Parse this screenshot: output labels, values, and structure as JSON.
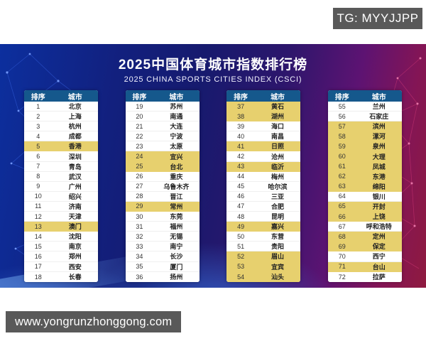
{
  "tg_badge": "TG: MYYJJPP",
  "website": "www.yongrunzhonggong.com",
  "poster": {
    "title": "2025中国体育城市指数排行榜",
    "subtitle": "2025 CHINA SPORTS CITIES INDEX (CSCI)"
  },
  "colors": {
    "header_bg": "#15588c",
    "highlight_row": "#e7d06e",
    "poster_left": "#0c2f9e",
    "poster_right": "#8f1a3f",
    "watermark_bg": "#595959"
  },
  "chart_data": {
    "type": "table",
    "title": "2025中国体育城市指数排行榜",
    "subtitle": "2025 CHINA SPORTS CITIES INDEX (CSCI)",
    "column_headers": [
      "排序",
      "城市"
    ],
    "row_format": [
      "rank",
      "city",
      "highlighted"
    ],
    "legend_note": "highlighted=1 rows shown with yellow background",
    "columns": [
      {
        "rows": [
          [
            1,
            "北京",
            0
          ],
          [
            2,
            "上海",
            0
          ],
          [
            3,
            "杭州",
            0
          ],
          [
            4,
            "成都",
            0
          ],
          [
            5,
            "香港",
            1
          ],
          [
            6,
            "深圳",
            0
          ],
          [
            7,
            "青岛",
            0
          ],
          [
            8,
            "武汉",
            0
          ],
          [
            9,
            "广州",
            0
          ],
          [
            10,
            "绍兴",
            0
          ],
          [
            11,
            "济南",
            0
          ],
          [
            12,
            "天津",
            0
          ],
          [
            13,
            "澳门",
            1
          ],
          [
            14,
            "沈阳",
            0
          ],
          [
            15,
            "南京",
            0
          ],
          [
            16,
            "郑州",
            0
          ],
          [
            17,
            "西安",
            0
          ],
          [
            18,
            "长春",
            0
          ]
        ]
      },
      {
        "rows": [
          [
            19,
            "苏州",
            0
          ],
          [
            20,
            "南通",
            0
          ],
          [
            21,
            "大连",
            0
          ],
          [
            22,
            "宁波",
            0
          ],
          [
            23,
            "太原",
            0
          ],
          [
            24,
            "宜兴",
            1
          ],
          [
            25,
            "台北",
            1
          ],
          [
            26,
            "重庆",
            0
          ],
          [
            27,
            "乌鲁木齐",
            0
          ],
          [
            28,
            "晋江",
            0
          ],
          [
            29,
            "常州",
            1
          ],
          [
            30,
            "东莞",
            0
          ],
          [
            31,
            "福州",
            0
          ],
          [
            32,
            "无锡",
            0
          ],
          [
            33,
            "南宁",
            0
          ],
          [
            34,
            "长沙",
            0
          ],
          [
            35,
            "厦门",
            0
          ],
          [
            36,
            "扬州",
            0
          ]
        ]
      },
      {
        "rows": [
          [
            37,
            "黄石",
            1
          ],
          [
            38,
            "湖州",
            1
          ],
          [
            39,
            "海口",
            0
          ],
          [
            40,
            "南昌",
            0
          ],
          [
            41,
            "日照",
            1
          ],
          [
            42,
            "沧州",
            0
          ],
          [
            43,
            "临沂",
            1
          ],
          [
            44,
            "梅州",
            0
          ],
          [
            45,
            "哈尔滨",
            0
          ],
          [
            46,
            "三亚",
            0
          ],
          [
            47,
            "合肥",
            0
          ],
          [
            48,
            "昆明",
            0
          ],
          [
            49,
            "嘉兴",
            1
          ],
          [
            50,
            "东营",
            0
          ],
          [
            51,
            "贵阳",
            0
          ],
          [
            52,
            "眉山",
            1
          ],
          [
            53,
            "宜宾",
            1
          ],
          [
            54,
            "汕头",
            1
          ]
        ]
      },
      {
        "rows": [
          [
            55,
            "兰州",
            0
          ],
          [
            56,
            "石家庄",
            0
          ],
          [
            57,
            "滨州",
            1
          ],
          [
            58,
            "漯河",
            1
          ],
          [
            59,
            "泉州",
            1
          ],
          [
            60,
            "大理",
            1
          ],
          [
            61,
            "凤城",
            1
          ],
          [
            62,
            "东港",
            1
          ],
          [
            63,
            "绵阳",
            1
          ],
          [
            64,
            "银川",
            0
          ],
          [
            65,
            "开封",
            1
          ],
          [
            66,
            "上饶",
            1
          ],
          [
            67,
            "呼和浩特",
            0
          ],
          [
            68,
            "定州",
            1
          ],
          [
            69,
            "保定",
            1
          ],
          [
            70,
            "西宁",
            0
          ],
          [
            71,
            "台山",
            1
          ],
          [
            72,
            "拉萨",
            0
          ]
        ]
      }
    ]
  }
}
